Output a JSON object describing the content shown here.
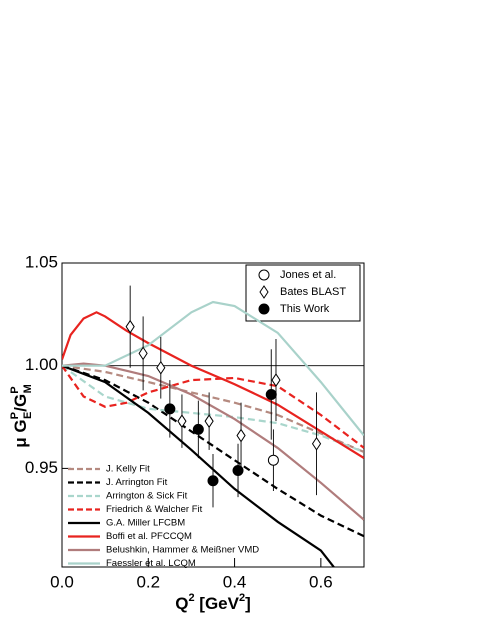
{
  "chart_data": {
    "type": "line",
    "xlabel_parts": [
      "Q",
      "2",
      " [GeV",
      "2",
      "]"
    ],
    "ylabel_parts": [
      "μ G",
      "P",
      "E",
      "/G",
      "P",
      "M"
    ],
    "xlim": [
      0,
      0.7
    ],
    "ylim": [
      0.902,
      1.05
    ],
    "xticks": [
      {
        "value": 0,
        "label": "0.0"
      },
      0.2,
      0.4,
      0.6
    ],
    "yticks": [
      0.95,
      {
        "value": 1,
        "label": "1.00"
      },
      1.05
    ],
    "reference_line": 1,
    "series": [
      {
        "name": "J. Kelly Fit",
        "color": "#b58a80",
        "dashed": true,
        "x": [
          0,
          0.1,
          0.2,
          0.3,
          0.4,
          0.5,
          0.6,
          0.7
        ],
        "values": [
          1.0,
          0.997,
          0.992,
          0.987,
          0.982,
          0.976,
          0.967,
          0.958
        ]
      },
      {
        "name": "J. Arrington Fit",
        "color": "#000000",
        "dashed": true,
        "x": [
          0,
          0.1,
          0.2,
          0.3,
          0.4,
          0.5,
          0.6,
          0.7
        ],
        "values": [
          1.0,
          0.993,
          0.982,
          0.968,
          0.954,
          0.94,
          0.927,
          0.917
        ]
      },
      {
        "name": "Arrington & Sick Fit",
        "color": "#a9d6cc",
        "dashed": true,
        "x": [
          0,
          0.1,
          0.2,
          0.3,
          0.4,
          0.5,
          0.6,
          0.7
        ],
        "values": [
          1.0,
          0.985,
          0.979,
          0.977,
          0.975,
          0.972,
          0.966,
          0.958
        ]
      },
      {
        "name": "Friedrich & Walcher Fit",
        "color": "#e8231f",
        "dashed": true,
        "x": [
          0,
          0.05,
          0.1,
          0.15,
          0.2,
          0.3,
          0.4,
          0.5,
          0.6,
          0.7
        ],
        "values": [
          1.0,
          0.985,
          0.98,
          0.982,
          0.987,
          0.993,
          0.994,
          0.99,
          0.976,
          0.96
        ]
      },
      {
        "name": "G.A. Miller LFCBM",
        "color": "#000000",
        "dashed": false,
        "x": [
          0,
          0.1,
          0.2,
          0.3,
          0.4,
          0.5,
          0.6,
          0.63
        ],
        "values": [
          1.0,
          0.992,
          0.977,
          0.959,
          0.94,
          0.924,
          0.91,
          0.902
        ]
      },
      {
        "name": "Boffi et al. PFCCQM",
        "color": "#e8231f",
        "dashed": false,
        "x": [
          0,
          0.02,
          0.05,
          0.08,
          0.1,
          0.15,
          0.2,
          0.3,
          0.4,
          0.5,
          0.6,
          0.7
        ],
        "values": [
          1.003,
          1.015,
          1.023,
          1.026,
          1.024,
          1.017,
          1.011,
          1.0,
          0.991,
          0.981,
          0.968,
          0.955
        ]
      },
      {
        "name": "Belushkin, Hammer & Meißner VMD",
        "color": "#b07c7c",
        "dashed": false,
        "x": [
          0,
          0.05,
          0.1,
          0.2,
          0.3,
          0.4,
          0.5,
          0.6,
          0.7
        ],
        "values": [
          1.0,
          1.001,
          1.0,
          0.995,
          0.986,
          0.974,
          0.96,
          0.943,
          0.925
        ]
      },
      {
        "name": "Faessler et al. LCQM",
        "color": "#a9d2ca",
        "dashed": false,
        "x": [
          0,
          0.1,
          0.2,
          0.3,
          0.35,
          0.4,
          0.5,
          0.6,
          0.7
        ],
        "values": [
          1.0,
          1.0,
          1.01,
          1.026,
          1.031,
          1.029,
          1.016,
          0.992,
          0.966
        ]
      }
    ],
    "points": [
      {
        "name": "Jones et al.",
        "marker": "circle-open",
        "x": [
          0.49
        ],
        "values": [
          0.954
        ],
        "errors": [
          0.015
        ]
      },
      {
        "name": "Bates BLAST",
        "marker": "diamond-open",
        "x": [
          0.158,
          0.188,
          0.229,
          0.278,
          0.341,
          0.415,
          0.496,
          0.59
        ],
        "values": [
          1.019,
          1.006,
          0.999,
          0.973,
          0.973,
          0.966,
          0.993,
          0.962
        ],
        "errors": [
          0.02,
          0.018,
          0.015,
          0.013,
          0.014,
          0.016,
          0.02,
          0.025
        ]
      },
      {
        "name": "This Work",
        "marker": "circle-filled",
        "x": [
          0.25,
          0.316,
          0.35,
          0.408,
          0.485
        ],
        "values": [
          0.979,
          0.969,
          0.944,
          0.949,
          0.986
        ],
        "errors": [
          0.014,
          0.014,
          0.013,
          0.013,
          0.022
        ]
      }
    ]
  }
}
